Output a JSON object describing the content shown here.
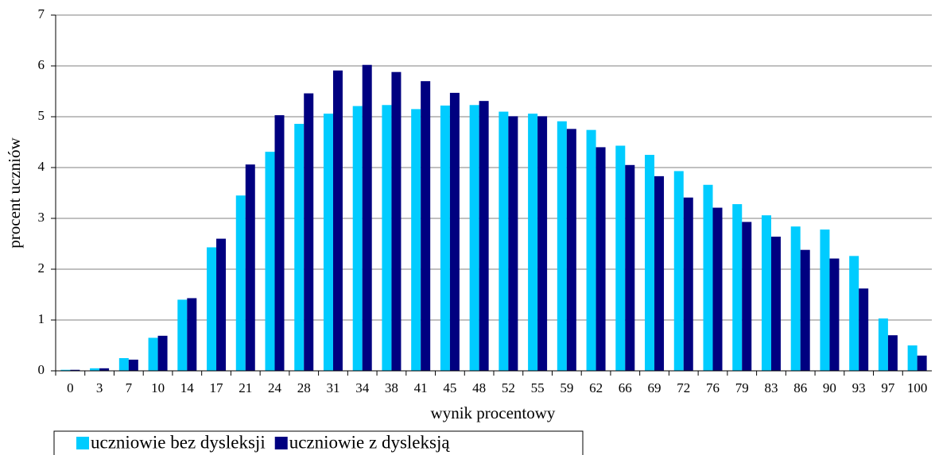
{
  "chart_data": {
    "type": "bar",
    "ylabel": "procent uczniów",
    "xlabel": "wynik procentowy",
    "categories": [
      "0",
      "3",
      "7",
      "10",
      "14",
      "17",
      "21",
      "24",
      "28",
      "31",
      "34",
      "38",
      "41",
      "45",
      "48",
      "52",
      "55",
      "59",
      "62",
      "66",
      "69",
      "72",
      "76",
      "79",
      "83",
      "86",
      "90",
      "93",
      "97",
      "100"
    ],
    "series": [
      {
        "name": "uczniowie bez dysleksji",
        "color": "#00ccff",
        "values": [
          0.02,
          0.05,
          0.25,
          0.65,
          1.4,
          2.43,
          3.45,
          4.31,
          4.86,
          5.06,
          5.21,
          5.23,
          5.15,
          5.22,
          5.23,
          5.1,
          5.06,
          4.91,
          4.74,
          4.43,
          4.25,
          3.93,
          3.66,
          3.28,
          3.06,
          2.84,
          2.78,
          2.26,
          1.03,
          0.5
        ]
      },
      {
        "name": "uczniowie z dysleksją",
        "color": "#000080",
        "values": [
          0.02,
          0.05,
          0.22,
          0.69,
          1.43,
          2.6,
          4.06,
          5.03,
          5.46,
          5.91,
          6.02,
          5.88,
          5.7,
          5.47,
          5.31,
          5.01,
          5.01,
          4.76,
          4.4,
          4.05,
          3.83,
          3.41,
          3.21,
          2.93,
          2.64,
          2.38,
          2.21,
          1.62,
          0.7,
          0.3
        ]
      }
    ],
    "ylim": [
      0,
      7
    ],
    "yticks": [
      0,
      1,
      2,
      3,
      4,
      5,
      6,
      7
    ],
    "grid": true,
    "legend": "bottom-left"
  }
}
